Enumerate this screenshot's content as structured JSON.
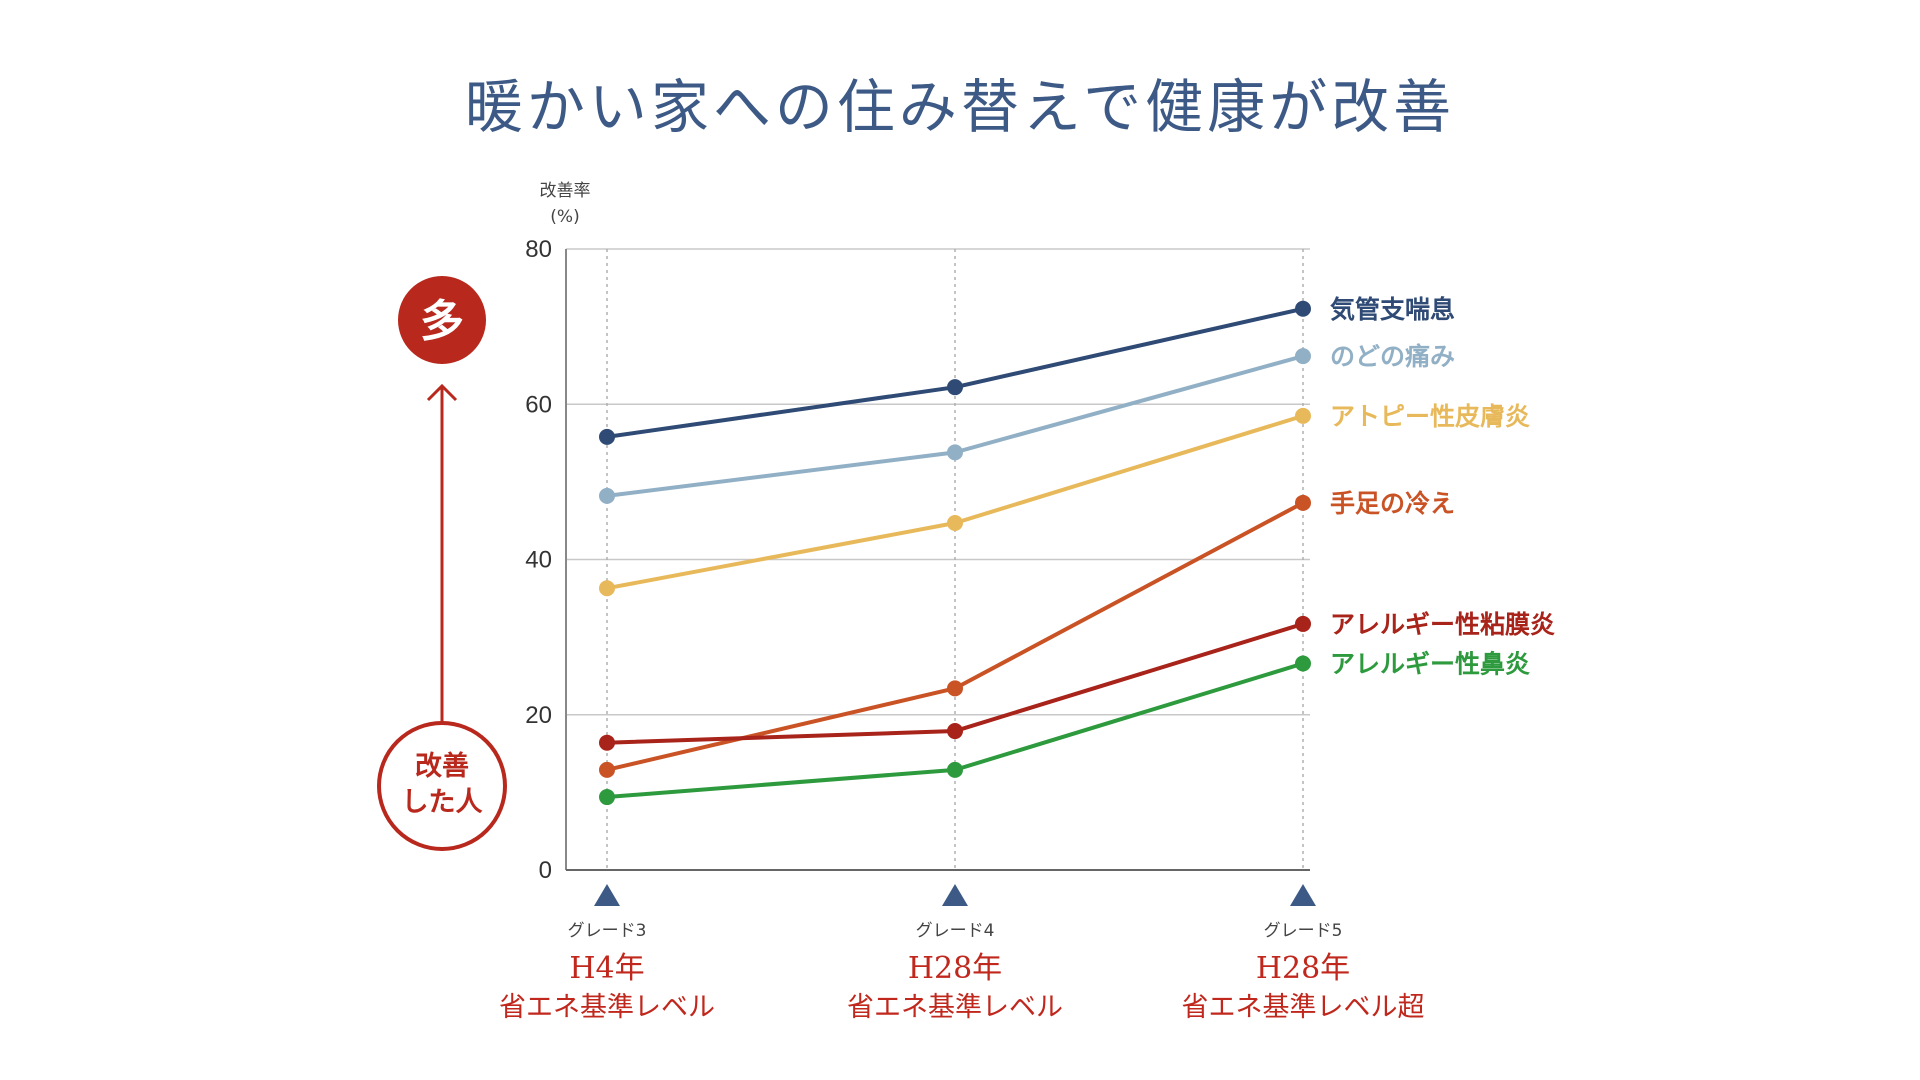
{
  "title": "暖かい家への住み替えで健康が改善",
  "side_badge_top": "多",
  "side_badge_bottom_line1": "改善",
  "side_badge_bottom_line2": "した人",
  "colors": {
    "title": "#3d5a86",
    "accent_red": "#b8281d",
    "marker": "#3d5a86"
  },
  "chart_data": {
    "type": "line",
    "ylabel_line1": "改善率",
    "ylabel_line2": "(%)",
    "ylim": [
      0,
      80
    ],
    "yticks": [
      0,
      20,
      40,
      60,
      80
    ],
    "grid": true,
    "x_groups": [
      {
        "grade": "グレード3",
        "year": "H4年",
        "standard": "省エネ基準レベル"
      },
      {
        "grade": "グレード4",
        "year": "H28年",
        "standard": "省エネ基準レベル"
      },
      {
        "grade": "グレード5",
        "year": "H28年",
        "standard": "省エネ基準レベル超"
      }
    ],
    "series": [
      {
        "name": "気管支喘息",
        "color": "#2e4a75",
        "values": [
          55.8,
          62.2,
          72.3
        ]
      },
      {
        "name": "のどの痛み",
        "color": "#91b0c6",
        "values": [
          48.2,
          53.8,
          66.2
        ]
      },
      {
        "name": "アトピー性皮膚炎",
        "color": "#e8b95a",
        "values": [
          36.3,
          44.7,
          58.5
        ]
      },
      {
        "name": "手足の冷え",
        "color": "#c95325",
        "values": [
          12.9,
          23.4,
          47.3
        ]
      },
      {
        "name": "アレルギー性粘膜炎",
        "color": "#a8231a",
        "values": [
          16.4,
          17.9,
          31.7
        ]
      },
      {
        "name": "アレルギー性鼻炎",
        "color": "#2e9a3e",
        "values": [
          9.4,
          12.9,
          26.6
        ]
      }
    ]
  }
}
